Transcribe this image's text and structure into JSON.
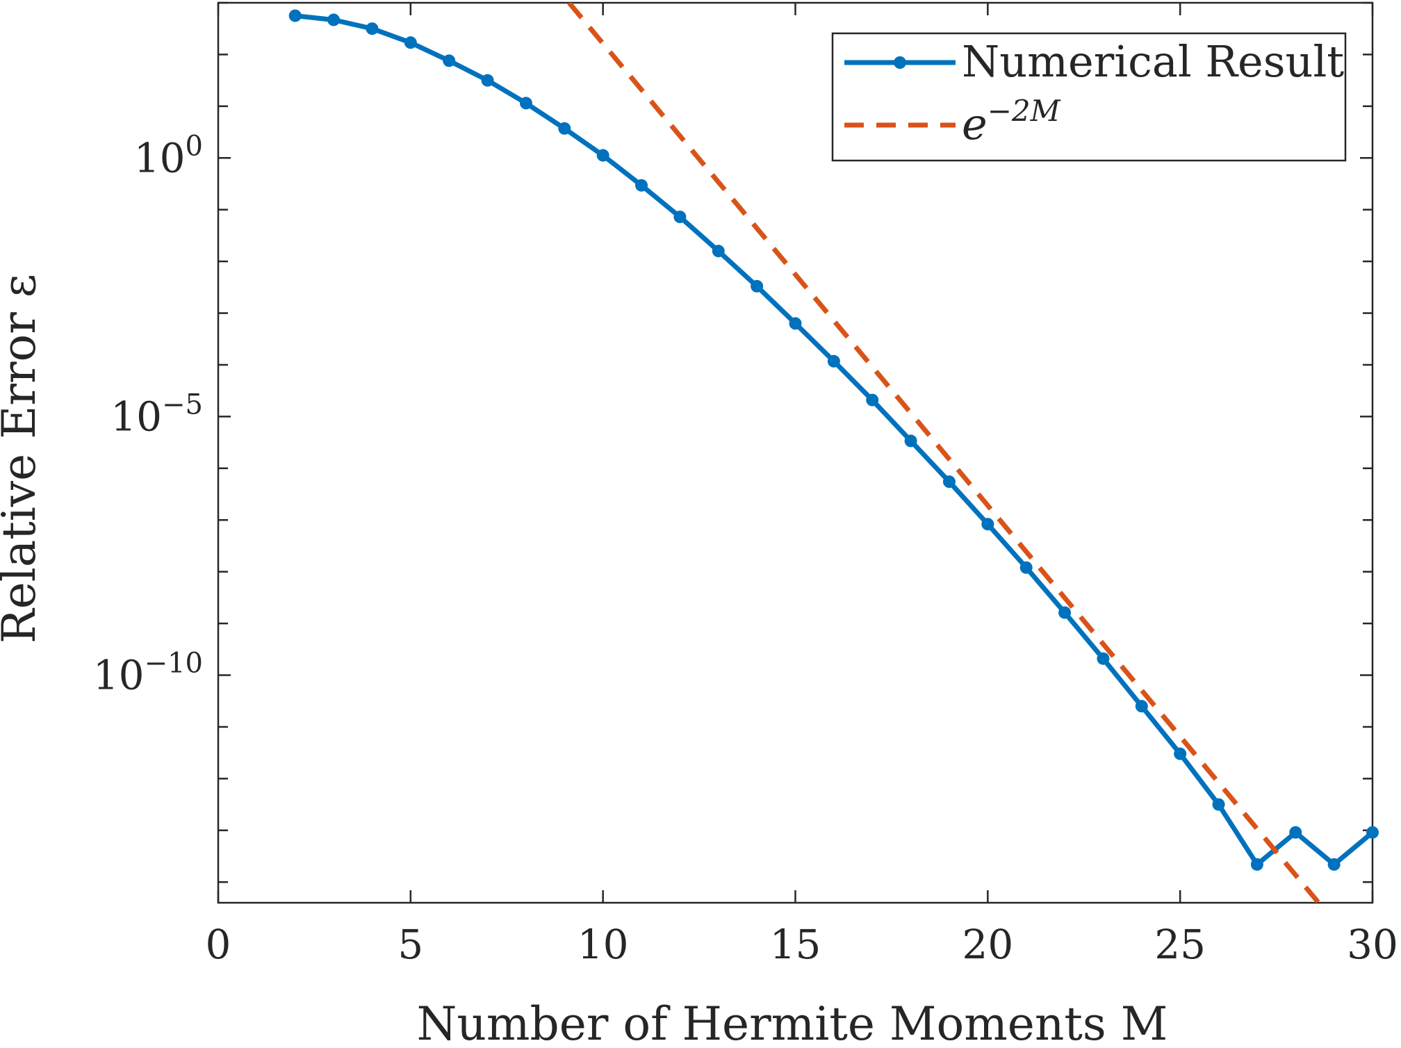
{
  "chart_data": {
    "type": "line",
    "xlabel": "Number of Hermite Moments M",
    "ylabel": "Relative Error ε",
    "xlim": [
      0,
      30
    ],
    "ylim_log10": [
      -14.4,
      3
    ],
    "y_scale": "log",
    "grid": false,
    "legend_placement": "top-right",
    "x_ticks": [
      0,
      5,
      10,
      15,
      20,
      25,
      30
    ],
    "x_tick_labels": [
      "0",
      "5",
      "10",
      "15",
      "20",
      "25",
      "30"
    ],
    "y_ticks_log10": [
      0,
      -5,
      -10
    ],
    "y_tick_labels": [
      {
        "base": "10",
        "exp": "0"
      },
      {
        "base": "10",
        "exp": "−5"
      },
      {
        "base": "10",
        "exp": "−10"
      }
    ],
    "series": [
      {
        "name": "Numerical Result",
        "color": "#0072bd",
        "style": "solid-markers",
        "x": [
          2,
          3,
          4,
          5,
          6,
          7,
          8,
          9,
          10,
          11,
          12,
          13,
          14,
          15,
          16,
          17,
          18,
          19,
          20,
          21,
          22,
          23,
          24,
          25,
          26,
          27,
          28,
          29,
          30
        ],
        "y_log10": [
          2.75,
          2.67,
          2.5,
          2.23,
          1.88,
          1.5,
          1.06,
          0.57,
          0.05,
          -0.53,
          -1.14,
          -1.8,
          -2.48,
          -3.2,
          -3.93,
          -4.68,
          -5.47,
          -6.26,
          -7.08,
          -7.92,
          -8.79,
          -9.68,
          -10.6,
          -11.52,
          -12.5,
          -13.66,
          -13.04,
          -13.66,
          -13.04
        ]
      },
      {
        "name": "e^{−2M}",
        "label_base": "e",
        "label_exp": "−2M",
        "color": "#d95319",
        "style": "dashed",
        "x": [
          9.12,
          28.6
        ],
        "y_log10": [
          3.0,
          -14.4
        ]
      }
    ]
  }
}
